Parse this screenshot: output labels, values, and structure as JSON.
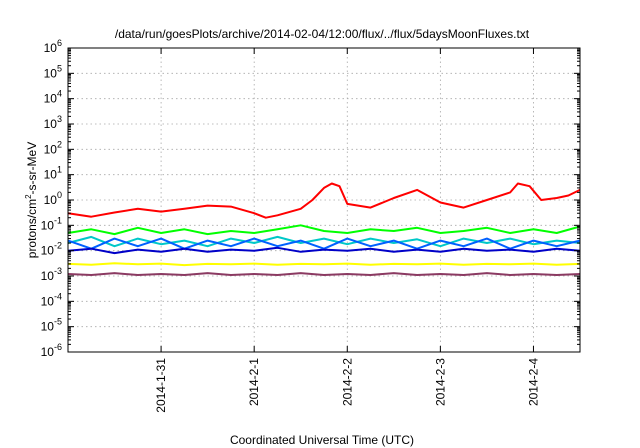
{
  "chart_data": {
    "type": "line",
    "title": "/data/run/goesPlots/archive/2014-02-04/12:00/flux/../flux/5daysMoonFluxes.txt",
    "xlabel": "Coordinated Universal Time (UTC)",
    "ylabel": "protons/cm2-s-sr-MeV",
    "ylabel_parts": {
      "pre": "protons/cm",
      "sup": "2",
      "post": "-s-sr-MeV"
    },
    "yscale": "log",
    "xlim": [
      "2014-01-30 00:00",
      "2014-02-04 12:00"
    ],
    "ylim": [
      1e-06,
      1000000.0
    ],
    "grid": true,
    "x_ticks": [
      {
        "value": "2014-01-31 00:00",
        "label": "2014-1-31"
      },
      {
        "value": "2014-02-01 00:00",
        "label": "2014-2-1"
      },
      {
        "value": "2014-02-02 00:00",
        "label": "2014-2-2"
      },
      {
        "value": "2014-02-03 00:00",
        "label": "2014-2-3"
      },
      {
        "value": "2014-02-04 00:00",
        "label": "2014-2-4"
      }
    ],
    "y_ticks": [
      {
        "value": 1e-06,
        "base": "10",
        "exp": "-6"
      },
      {
        "value": 1e-05,
        "base": "10",
        "exp": "-5"
      },
      {
        "value": 0.0001,
        "base": "10",
        "exp": "-4"
      },
      {
        "value": 0.001,
        "base": "10",
        "exp": "-3"
      },
      {
        "value": 0.01,
        "base": "10",
        "exp": "-2"
      },
      {
        "value": 0.1,
        "base": "10",
        "exp": "-1"
      },
      {
        "value": 1,
        "base": "10",
        "exp": "0"
      },
      {
        "value": 10,
        "base": "10",
        "exp": "1"
      },
      {
        "value": 100,
        "base": "10",
        "exp": "2"
      },
      {
        "value": 1000,
        "base": "10",
        "exp": "3"
      },
      {
        "value": 10000,
        "base": "10",
        "exp": "4"
      },
      {
        "value": 100000,
        "base": "10",
        "exp": "5"
      },
      {
        "value": 1000000,
        "base": "10",
        "exp": "6"
      }
    ],
    "series": [
      {
        "color": "#ff0000",
        "values": [
          [
            "2014-01-30 00:00",
            0.3
          ],
          [
            "2014-01-30 06:00",
            0.22
          ],
          [
            "2014-01-30 12:00",
            0.32
          ],
          [
            "2014-01-30 18:00",
            0.45
          ],
          [
            "2014-01-31 00:00",
            0.35
          ],
          [
            "2014-01-31 06:00",
            0.45
          ],
          [
            "2014-01-31 12:00",
            0.6
          ],
          [
            "2014-01-31 18:00",
            0.55
          ],
          [
            "2014-02-01 00:00",
            0.3
          ],
          [
            "2014-02-01 03:00",
            0.2
          ],
          [
            "2014-02-01 06:00",
            0.25
          ],
          [
            "2014-02-01 12:00",
            0.45
          ],
          [
            "2014-02-01 15:00",
            1.0
          ],
          [
            "2014-02-01 18:00",
            3.0
          ],
          [
            "2014-02-01 20:00",
            4.5
          ],
          [
            "2014-02-01 22:00",
            3.5
          ],
          [
            "2014-02-02 00:00",
            0.7
          ],
          [
            "2014-02-02 06:00",
            0.5
          ],
          [
            "2014-02-02 12:00",
            1.2
          ],
          [
            "2014-02-02 18:00",
            2.5
          ],
          [
            "2014-02-03 00:00",
            0.8
          ],
          [
            "2014-02-03 06:00",
            0.5
          ],
          [
            "2014-02-03 12:00",
            1.0
          ],
          [
            "2014-02-03 18:00",
            2.0
          ],
          [
            "2014-02-03 20:00",
            4.5
          ],
          [
            "2014-02-03 23:00",
            3.5
          ],
          [
            "2014-02-04 02:00",
            1.0
          ],
          [
            "2014-02-04 06:00",
            1.2
          ],
          [
            "2014-02-04 09:00",
            1.5
          ],
          [
            "2014-02-04 12:00",
            2.5
          ]
        ]
      },
      {
        "color": "#00ff00",
        "values": [
          [
            "2014-01-30 00:00",
            0.05
          ],
          [
            "2014-01-30 06:00",
            0.07
          ],
          [
            "2014-01-30 12:00",
            0.045
          ],
          [
            "2014-01-30 18:00",
            0.08
          ],
          [
            "2014-01-31 00:00",
            0.05
          ],
          [
            "2014-01-31 06:00",
            0.07
          ],
          [
            "2014-01-31 12:00",
            0.045
          ],
          [
            "2014-01-31 18:00",
            0.06
          ],
          [
            "2014-02-01 00:00",
            0.05
          ],
          [
            "2014-02-01 06:00",
            0.07
          ],
          [
            "2014-02-01 12:00",
            0.1
          ],
          [
            "2014-02-01 18:00",
            0.06
          ],
          [
            "2014-02-02 00:00",
            0.05
          ],
          [
            "2014-02-02 06:00",
            0.07
          ],
          [
            "2014-02-02 12:00",
            0.06
          ],
          [
            "2014-02-02 18:00",
            0.08
          ],
          [
            "2014-02-03 00:00",
            0.05
          ],
          [
            "2014-02-03 06:00",
            0.06
          ],
          [
            "2014-02-03 12:00",
            0.08
          ],
          [
            "2014-02-03 18:00",
            0.05
          ],
          [
            "2014-02-04 00:00",
            0.07
          ],
          [
            "2014-02-04 06:00",
            0.05
          ],
          [
            "2014-02-04 12:00",
            0.09
          ]
        ]
      },
      {
        "color": "#00c8c8",
        "values": [
          [
            "2014-01-30 00:00",
            0.02
          ],
          [
            "2014-01-30 06:00",
            0.035
          ],
          [
            "2014-01-30 12:00",
            0.015
          ],
          [
            "2014-01-30 18:00",
            0.03
          ],
          [
            "2014-01-31 00:00",
            0.018
          ],
          [
            "2014-01-31 06:00",
            0.025
          ],
          [
            "2014-01-31 12:00",
            0.015
          ],
          [
            "2014-01-31 18:00",
            0.03
          ],
          [
            "2014-02-01 00:00",
            0.02
          ],
          [
            "2014-02-01 06:00",
            0.035
          ],
          [
            "2014-02-01 12:00",
            0.02
          ],
          [
            "2014-02-01 18:00",
            0.03
          ],
          [
            "2014-02-02 00:00",
            0.018
          ],
          [
            "2014-02-02 06:00",
            0.03
          ],
          [
            "2014-02-02 12:00",
            0.02
          ],
          [
            "2014-02-02 18:00",
            0.028
          ],
          [
            "2014-02-03 00:00",
            0.015
          ],
          [
            "2014-02-03 06:00",
            0.03
          ],
          [
            "2014-02-03 12:00",
            0.02
          ],
          [
            "2014-02-03 18:00",
            0.03
          ],
          [
            "2014-02-04 00:00",
            0.018
          ],
          [
            "2014-02-04 06:00",
            0.025
          ],
          [
            "2014-02-04 12:00",
            0.02
          ]
        ]
      },
      {
        "color": "#0060ff",
        "values": [
          [
            "2014-01-30 00:00",
            0.025
          ],
          [
            "2014-01-30 06:00",
            0.012
          ],
          [
            "2014-01-30 12:00",
            0.03
          ],
          [
            "2014-01-30 18:00",
            0.015
          ],
          [
            "2014-01-31 00:00",
            0.03
          ],
          [
            "2014-01-31 06:00",
            0.012
          ],
          [
            "2014-01-31 12:00",
            0.025
          ],
          [
            "2014-01-31 18:00",
            0.015
          ],
          [
            "2014-02-01 00:00",
            0.03
          ],
          [
            "2014-02-01 06:00",
            0.015
          ],
          [
            "2014-02-01 12:00",
            0.025
          ],
          [
            "2014-02-01 18:00",
            0.012
          ],
          [
            "2014-02-02 00:00",
            0.03
          ],
          [
            "2014-02-02 06:00",
            0.015
          ],
          [
            "2014-02-02 12:00",
            0.025
          ],
          [
            "2014-02-02 18:00",
            0.012
          ],
          [
            "2014-02-03 00:00",
            0.025
          ],
          [
            "2014-02-03 06:00",
            0.015
          ],
          [
            "2014-02-03 12:00",
            0.03
          ],
          [
            "2014-02-03 18:00",
            0.012
          ],
          [
            "2014-02-04 00:00",
            0.025
          ],
          [
            "2014-02-04 06:00",
            0.015
          ],
          [
            "2014-02-04 12:00",
            0.025
          ]
        ]
      },
      {
        "color": "#0000c8",
        "values": [
          [
            "2014-01-30 00:00",
            0.01
          ],
          [
            "2014-01-30 06:00",
            0.012
          ],
          [
            "2014-01-30 12:00",
            0.008
          ],
          [
            "2014-01-30 18:00",
            0.011
          ],
          [
            "2014-01-31 00:00",
            0.009
          ],
          [
            "2014-01-31 06:00",
            0.012
          ],
          [
            "2014-01-31 12:00",
            0.009
          ],
          [
            "2014-01-31 18:00",
            0.011
          ],
          [
            "2014-02-01 00:00",
            0.01
          ],
          [
            "2014-02-01 06:00",
            0.013
          ],
          [
            "2014-02-01 12:00",
            0.009
          ],
          [
            "2014-02-01 18:00",
            0.011
          ],
          [
            "2014-02-02 00:00",
            0.01
          ],
          [
            "2014-02-02 06:00",
            0.012
          ],
          [
            "2014-02-02 12:00",
            0.009
          ],
          [
            "2014-02-02 18:00",
            0.011
          ],
          [
            "2014-02-03 00:00",
            0.009
          ],
          [
            "2014-02-03 06:00",
            0.012
          ],
          [
            "2014-02-03 12:00",
            0.01
          ],
          [
            "2014-02-03 18:00",
            0.011
          ],
          [
            "2014-02-04 00:00",
            0.009
          ],
          [
            "2014-02-04 06:00",
            0.012
          ],
          [
            "2014-02-04 12:00",
            0.01
          ]
        ]
      },
      {
        "color": "#ffff00",
        "values": [
          [
            "2014-01-30 00:00",
            0.003
          ],
          [
            "2014-01-30 06:00",
            0.0028
          ],
          [
            "2014-01-30 12:00",
            0.0032
          ],
          [
            "2014-01-30 18:00",
            0.0029
          ],
          [
            "2014-01-31 00:00",
            0.0031
          ],
          [
            "2014-01-31 06:00",
            0.0027
          ],
          [
            "2014-01-31 12:00",
            0.003
          ],
          [
            "2014-01-31 18:00",
            0.0029
          ],
          [
            "2014-02-01 00:00",
            0.0031
          ],
          [
            "2014-02-01 06:00",
            0.0028
          ],
          [
            "2014-02-01 12:00",
            0.003
          ],
          [
            "2014-02-01 18:00",
            0.0029
          ],
          [
            "2014-02-02 00:00",
            0.0031
          ],
          [
            "2014-02-02 06:00",
            0.0028
          ],
          [
            "2014-02-02 12:00",
            0.003
          ],
          [
            "2014-02-02 18:00",
            0.0029
          ],
          [
            "2014-02-03 00:00",
            0.0031
          ],
          [
            "2014-02-03 06:00",
            0.0028
          ],
          [
            "2014-02-03 12:00",
            0.003
          ],
          [
            "2014-02-03 18:00",
            0.0029
          ],
          [
            "2014-02-04 00:00",
            0.0031
          ],
          [
            "2014-02-04 06:00",
            0.0028
          ],
          [
            "2014-02-04 12:00",
            0.003
          ]
        ]
      },
      {
        "color": "#8b3a62",
        "values": [
          [
            "2014-01-30 00:00",
            0.0012
          ],
          [
            "2014-01-30 06:00",
            0.0011
          ],
          [
            "2014-01-30 12:00",
            0.0013
          ],
          [
            "2014-01-30 18:00",
            0.0011
          ],
          [
            "2014-01-31 00:00",
            0.0012
          ],
          [
            "2014-01-31 06:00",
            0.0011
          ],
          [
            "2014-01-31 12:00",
            0.0013
          ],
          [
            "2014-01-31 18:00",
            0.0011
          ],
          [
            "2014-02-01 00:00",
            0.0012
          ],
          [
            "2014-02-01 06:00",
            0.0011
          ],
          [
            "2014-02-01 12:00",
            0.0013
          ],
          [
            "2014-02-01 18:00",
            0.0011
          ],
          [
            "2014-02-02 00:00",
            0.0012
          ],
          [
            "2014-02-02 06:00",
            0.0011
          ],
          [
            "2014-02-02 12:00",
            0.0013
          ],
          [
            "2014-02-02 18:00",
            0.0011
          ],
          [
            "2014-02-03 00:00",
            0.0012
          ],
          [
            "2014-02-03 06:00",
            0.0011
          ],
          [
            "2014-02-03 12:00",
            0.0013
          ],
          [
            "2014-02-03 18:00",
            0.0011
          ],
          [
            "2014-02-04 00:00",
            0.0012
          ],
          [
            "2014-02-04 06:00",
            0.0011
          ],
          [
            "2014-02-04 12:00",
            0.0012
          ]
        ]
      }
    ]
  }
}
